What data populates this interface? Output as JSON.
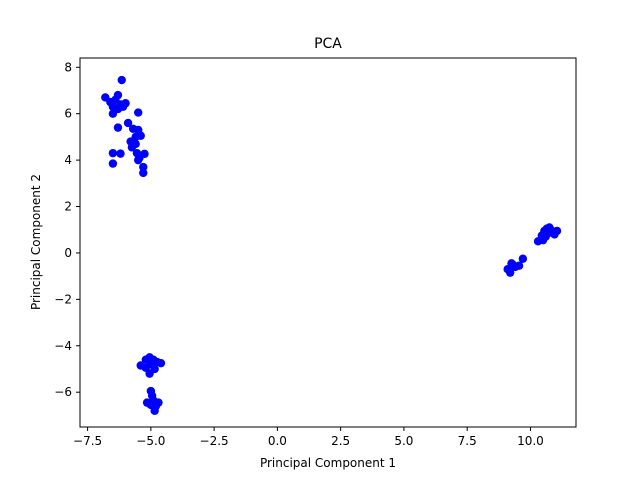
{
  "chart_data": {
    "type": "scatter",
    "title": "PCA",
    "xlabel": "Principal Component 1",
    "ylabel": "Principal Component 2",
    "xlim": [
      -7.8,
      11.8
    ],
    "ylim": [
      -7.5,
      8.4
    ],
    "xticks": [
      -7.5,
      -5.0,
      -2.5,
      0.0,
      2.5,
      5.0,
      7.5,
      10.0
    ],
    "xtick_labels": [
      "−7.5",
      "−5.0",
      "−2.5",
      "0.0",
      "2.5",
      "5.0",
      "7.5",
      "10.0"
    ],
    "yticks": [
      -6,
      -4,
      -2,
      0,
      2,
      4,
      6,
      8
    ],
    "ytick_labels": [
      "−6",
      "−4",
      "−2",
      "0",
      "2",
      "4",
      "6",
      "8"
    ],
    "grid": false,
    "legend": null,
    "marker_color": "#0000ff",
    "series": [
      {
        "values": [
          {
            "x": -6.8,
            "y": 6.7
          },
          {
            "x": -6.6,
            "y": 6.5
          },
          {
            "x": -6.5,
            "y": 6.3
          },
          {
            "x": -6.4,
            "y": 6.6
          },
          {
            "x": -6.3,
            "y": 6.8
          },
          {
            "x": -6.2,
            "y": 6.4
          },
          {
            "x": -6.15,
            "y": 7.45
          },
          {
            "x": -6.3,
            "y": 6.2
          },
          {
            "x": -6.5,
            "y": 6.0
          },
          {
            "x": -6.0,
            "y": 6.45
          },
          {
            "x": -6.1,
            "y": 6.3
          },
          {
            "x": -5.5,
            "y": 6.05
          },
          {
            "x": -6.3,
            "y": 5.4
          },
          {
            "x": -5.9,
            "y": 5.6
          },
          {
            "x": -5.7,
            "y": 5.35
          },
          {
            "x": -5.5,
            "y": 5.3
          },
          {
            "x": -5.6,
            "y": 5.0
          },
          {
            "x": -5.4,
            "y": 5.05
          },
          {
            "x": -5.8,
            "y": 4.8
          },
          {
            "x": -5.6,
            "y": 4.7
          },
          {
            "x": -5.75,
            "y": 4.55
          },
          {
            "x": -6.5,
            "y": 4.3
          },
          {
            "x": -6.2,
            "y": 4.28
          },
          {
            "x": -5.55,
            "y": 4.3
          },
          {
            "x": -5.45,
            "y": 4.1
          },
          {
            "x": -5.25,
            "y": 4.27
          },
          {
            "x": -5.5,
            "y": 4.0
          },
          {
            "x": -6.5,
            "y": 3.85
          },
          {
            "x": -5.3,
            "y": 3.7
          },
          {
            "x": -5.3,
            "y": 3.45
          },
          {
            "x": 9.1,
            "y": -0.7
          },
          {
            "x": 9.2,
            "y": -0.85
          },
          {
            "x": 9.3,
            "y": -0.5
          },
          {
            "x": 9.4,
            "y": -0.6
          },
          {
            "x": 9.55,
            "y": -0.55
          },
          {
            "x": 9.7,
            "y": -0.25
          },
          {
            "x": 9.25,
            "y": -0.45
          },
          {
            "x": 10.3,
            "y": 0.5
          },
          {
            "x": 10.5,
            "y": 0.55
          },
          {
            "x": 10.45,
            "y": 0.75
          },
          {
            "x": 10.55,
            "y": 0.95
          },
          {
            "x": 10.65,
            "y": 1.05
          },
          {
            "x": 10.75,
            "y": 1.1
          },
          {
            "x": 10.7,
            "y": 0.85
          },
          {
            "x": 10.85,
            "y": 0.95
          },
          {
            "x": 10.95,
            "y": 0.8
          },
          {
            "x": 11.05,
            "y": 0.95
          },
          {
            "x": 10.6,
            "y": 0.7
          },
          {
            "x": -5.4,
            "y": -4.85
          },
          {
            "x": -5.2,
            "y": -4.6
          },
          {
            "x": -5.05,
            "y": -4.5
          },
          {
            "x": -4.9,
            "y": -4.6
          },
          {
            "x": -4.75,
            "y": -4.7
          },
          {
            "x": -5.0,
            "y": -4.8
          },
          {
            "x": -5.2,
            "y": -4.95
          },
          {
            "x": -5.05,
            "y": -5.2
          },
          {
            "x": -4.85,
            "y": -5.0
          },
          {
            "x": -4.95,
            "y": -4.7
          },
          {
            "x": -4.6,
            "y": -4.75
          },
          {
            "x": -5.0,
            "y": -5.95
          },
          {
            "x": -4.95,
            "y": -6.15
          },
          {
            "x": -5.15,
            "y": -6.45
          },
          {
            "x": -4.9,
            "y": -6.35
          },
          {
            "x": -4.7,
            "y": -6.45
          },
          {
            "x": -4.8,
            "y": -6.6
          },
          {
            "x": -5.0,
            "y": -6.55
          },
          {
            "x": -4.85,
            "y": -6.8
          }
        ]
      }
    ]
  }
}
